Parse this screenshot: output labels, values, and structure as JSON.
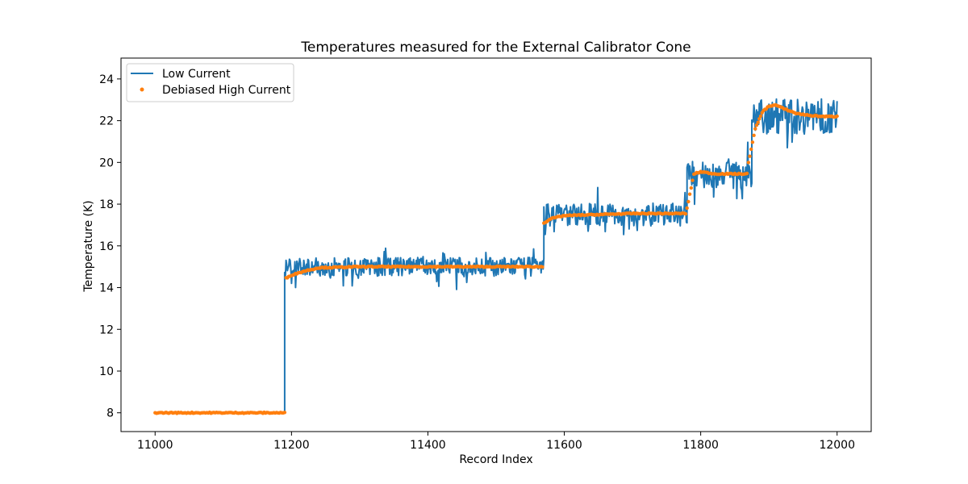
{
  "chart_data": {
    "type": "line",
    "title": "Temperatures measured for the External Calibrator Cone",
    "xlabel": "Record Index",
    "ylabel": "Temperature (K)",
    "xlim": [
      10950,
      12050
    ],
    "ylim": [
      7.1,
      25.0
    ],
    "xticks": [
      11000,
      11200,
      11400,
      11600,
      11800,
      12000
    ],
    "yticks": [
      8,
      10,
      12,
      14,
      16,
      18,
      20,
      22,
      24
    ],
    "legend_position": "top-left",
    "series": [
      {
        "name": "Low Current",
        "kind": "line",
        "color": "#1f77b4",
        "segments": [
          {
            "start": 11000,
            "end": 11190,
            "level": 8.0,
            "noise": 0.02
          },
          {
            "start": 11190,
            "end": 11570,
            "level": 15.0,
            "noise": 0.45
          },
          {
            "start": 11570,
            "end": 11780,
            "level": 17.5,
            "noise": 0.55
          },
          {
            "start": 11780,
            "end": 11875,
            "level": 19.4,
            "noise": 0.65
          },
          {
            "start": 11875,
            "end": 12000,
            "level": 22.2,
            "noise": 0.85
          }
        ]
      },
      {
        "name": "Debiased High Current",
        "kind": "scatter",
        "color": "#ff7f0e",
        "points": [
          [
            11000,
            8.0
          ],
          [
            11100,
            8.0
          ],
          [
            11190,
            8.0
          ],
          [
            11192,
            14.45
          ],
          [
            11200,
            14.6
          ],
          [
            11220,
            14.8
          ],
          [
            11240,
            14.95
          ],
          [
            11300,
            15.0
          ],
          [
            11400,
            15.0
          ],
          [
            11500,
            15.0
          ],
          [
            11568,
            15.0
          ],
          [
            11570,
            17.1
          ],
          [
            11580,
            17.3
          ],
          [
            11600,
            17.45
          ],
          [
            11650,
            17.5
          ],
          [
            11700,
            17.55
          ],
          [
            11778,
            17.55
          ],
          [
            11780,
            17.8
          ],
          [
            11790,
            19.45
          ],
          [
            11800,
            19.55
          ],
          [
            11820,
            19.45
          ],
          [
            11850,
            19.45
          ],
          [
            11868,
            19.45
          ],
          [
            11870,
            20.0
          ],
          [
            11880,
            21.6
          ],
          [
            11890,
            22.4
          ],
          [
            11900,
            22.7
          ],
          [
            11910,
            22.75
          ],
          [
            11920,
            22.6
          ],
          [
            11940,
            22.35
          ],
          [
            11960,
            22.25
          ],
          [
            11980,
            22.2
          ],
          [
            12000,
            22.2
          ]
        ]
      }
    ]
  }
}
